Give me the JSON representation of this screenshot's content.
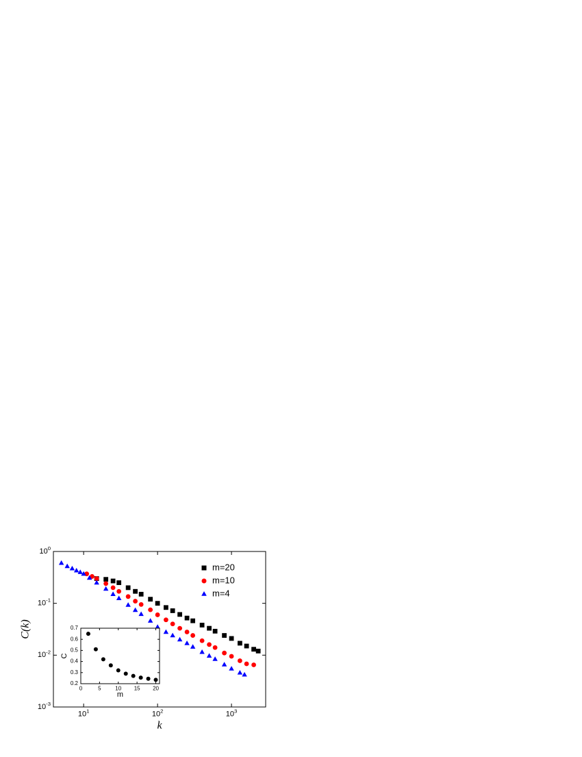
{
  "chart_data": [
    {
      "type": "scatter",
      "xlabel": "k",
      "ylabel": "C(k)",
      "xscale": "log",
      "yscale": "log",
      "xlim": [
        3.9,
        2900
      ],
      "ylim": [
        0.001,
        1
      ],
      "xticks": [
        {
          "value": 10,
          "label": "10^1"
        },
        {
          "value": 100,
          "label": "10^2"
        },
        {
          "value": 1000,
          "label": "10^3"
        }
      ],
      "yticks": [
        {
          "value": 0.001,
          "label": "10^-3"
        },
        {
          "value": 0.01,
          "label": "10^-2"
        },
        {
          "value": 0.1,
          "label": "10^-1"
        },
        {
          "value": 1,
          "label": "10^0"
        }
      ],
      "legend": "upper right",
      "series": [
        {
          "name": "m=20",
          "color": "#000000",
          "marker": "square",
          "x": [
            15,
            20,
            25,
            30,
            40,
            50,
            60,
            80,
            100,
            130,
            160,
            200,
            250,
            300,
            400,
            500,
            600,
            800,
            1000,
            1300,
            1600,
            2000,
            2300
          ],
          "values": [
            0.3,
            0.29,
            0.27,
            0.25,
            0.2,
            0.17,
            0.15,
            0.12,
            0.1,
            0.083,
            0.072,
            0.061,
            0.052,
            0.046,
            0.038,
            0.033,
            0.029,
            0.024,
            0.021,
            0.017,
            0.015,
            0.013,
            0.012
          ]
        },
        {
          "name": "m=10",
          "color": "#ff0000",
          "marker": "circle",
          "x": [
            11,
            13,
            15,
            20,
            25,
            30,
            40,
            50,
            60,
            80,
            100,
            130,
            160,
            200,
            250,
            300,
            400,
            500,
            600,
            800,
            1000,
            1300,
            1600,
            2000
          ],
          "values": [
            0.37,
            0.33,
            0.3,
            0.24,
            0.2,
            0.17,
            0.135,
            0.11,
            0.095,
            0.075,
            0.06,
            0.048,
            0.04,
            0.033,
            0.028,
            0.024,
            0.019,
            0.016,
            0.014,
            0.011,
            0.0095,
            0.0078,
            0.0068,
            0.0065
          ]
        },
        {
          "name": "m=4",
          "color": "#0000ff",
          "marker": "triangle",
          "x": [
            5,
            6,
            7,
            8,
            9,
            10,
            12,
            15,
            20,
            25,
            30,
            40,
            50,
            60,
            80,
            100,
            130,
            160,
            200,
            250,
            300,
            400,
            500,
            600,
            800,
            1000,
            1300,
            1500
          ],
          "values": [
            0.6,
            0.52,
            0.47,
            0.43,
            0.4,
            0.37,
            0.31,
            0.25,
            0.19,
            0.15,
            0.125,
            0.093,
            0.074,
            0.062,
            0.046,
            0.035,
            0.028,
            0.024,
            0.02,
            0.017,
            0.0145,
            0.0115,
            0.0097,
            0.0084,
            0.0066,
            0.0055,
            0.0046,
            0.0042
          ]
        }
      ]
    },
    {
      "type": "scatter",
      "xlabel": "m",
      "ylabel": "C",
      "xlim": [
        0,
        21
      ],
      "ylim": [
        0.2,
        0.7
      ],
      "xticks": [
        0,
        5,
        10,
        15,
        20
      ],
      "yticks": [
        0.2,
        0.3,
        0.4,
        0.5,
        0.6,
        0.7
      ],
      "series": [
        {
          "color": "#000000",
          "marker": "circle",
          "x": [
            2,
            4,
            6,
            8,
            10,
            12,
            14,
            16,
            18,
            20
          ],
          "values": [
            0.65,
            0.51,
            0.42,
            0.365,
            0.32,
            0.29,
            0.27,
            0.255,
            0.245,
            0.235
          ]
        }
      ]
    }
  ]
}
